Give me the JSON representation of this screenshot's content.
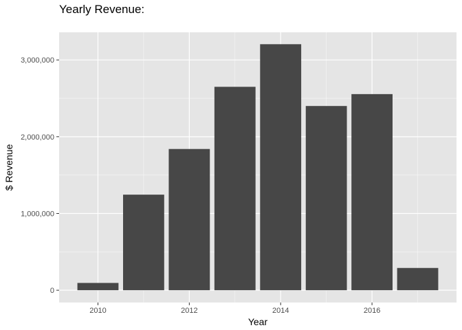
{
  "chart_data": {
    "type": "bar",
    "title": "Yearly Revenue:",
    "xlabel": "Year",
    "ylabel": "$ Revenue",
    "x": [
      2010,
      2011,
      2012,
      2013,
      2014,
      2015,
      2016,
      2017
    ],
    "values": [
      95000,
      1245000,
      1840000,
      2650000,
      3205000,
      2400000,
      2555000,
      290000
    ],
    "xlim": [
      2009.15,
      2017.85
    ],
    "ylim": [
      -160000,
      3360000
    ],
    "x_ticks": [
      2010,
      2012,
      2014,
      2016
    ],
    "x_tick_labels": [
      "2010",
      "2012",
      "2014",
      "2016"
    ],
    "y_ticks": [
      0,
      1000000,
      2000000,
      3000000
    ],
    "y_tick_labels": [
      "0",
      "1,000,000",
      "2,000,000",
      "3,000,000"
    ],
    "bar_color": "#474747",
    "panel_background": "#e5e5e5",
    "grid_color": "#ffffff",
    "grid": true,
    "legend": "none"
  }
}
